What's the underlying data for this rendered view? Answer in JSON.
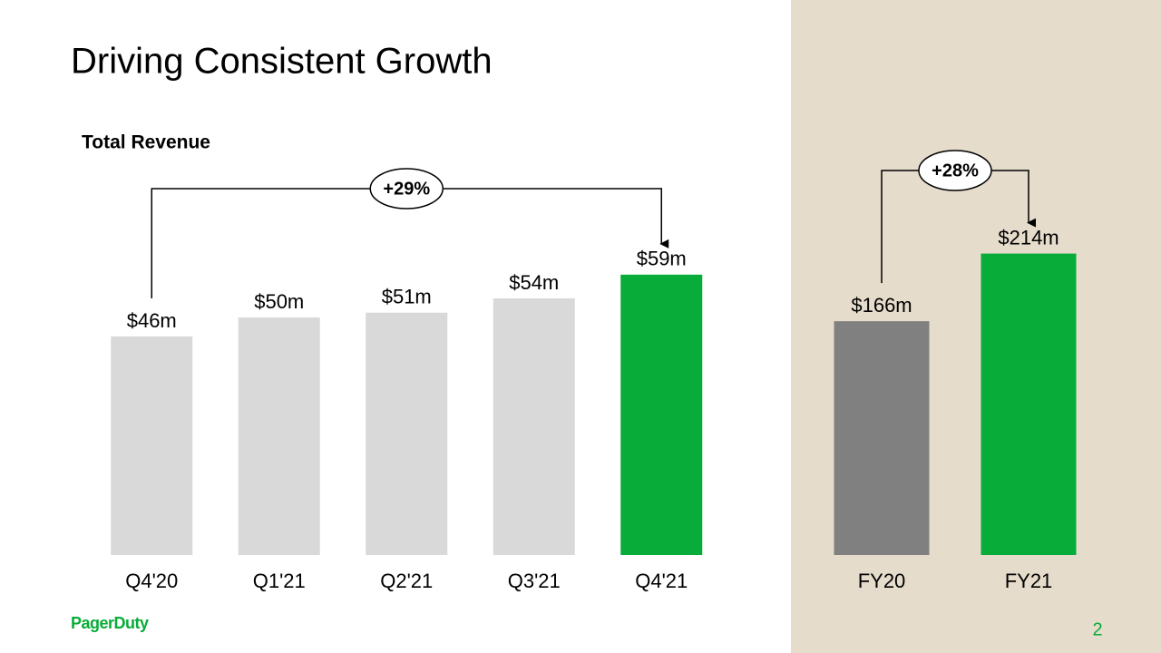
{
  "slide": {
    "title": "Driving Consistent Growth",
    "logo": "PagerDuty",
    "page_number": "2"
  },
  "chart_data": [
    {
      "type": "bar",
      "title": "Total Revenue",
      "categories": [
        "Q4'20",
        "Q1'21",
        "Q2'21",
        "Q3'21",
        "Q4'21"
      ],
      "values": [
        46,
        50,
        51,
        54,
        59
      ],
      "value_labels": [
        "$46m",
        "$50m",
        "$51m",
        "$54m",
        "$59m"
      ],
      "colors": [
        "#d9d9d9",
        "#d9d9d9",
        "#d9d9d9",
        "#d9d9d9",
        "#08ac38"
      ],
      "ylim": [
        0,
        100
      ],
      "annotation": "+29%"
    },
    {
      "type": "bar",
      "categories": [
        "FY20",
        "FY21"
      ],
      "values": [
        166,
        214
      ],
      "value_labels": [
        "$166m",
        "$214m"
      ],
      "colors": [
        "#808080",
        "#08ac38"
      ],
      "ylim": [
        0,
        300
      ],
      "annotation": "+28%"
    }
  ]
}
